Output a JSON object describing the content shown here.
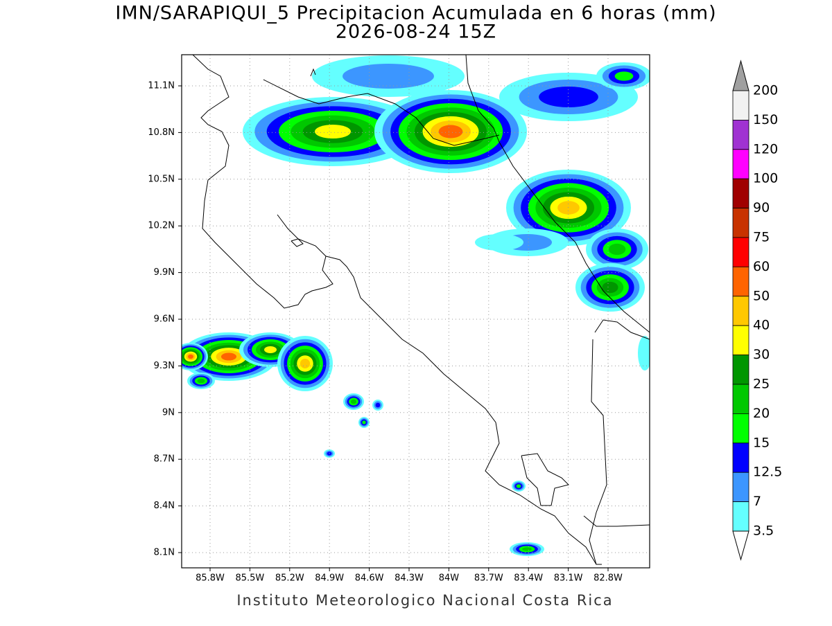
{
  "title": "IMN/SARAPIQUI_5 Precipitacion Acumulada en 6 horas (mm)",
  "subtitle": "2026-08-24 15Z",
  "map": {
    "lon_ticks": [
      "85.8W",
      "85.5W",
      "85.2W",
      "84.9W",
      "84.6W",
      "84.3W",
      "84W",
      "83.7W",
      "83.4W",
      "83.1W",
      "82.8W"
    ],
    "lat_ticks": [
      "11.1N",
      "10.8N",
      "10.5N",
      "10.2N",
      "9.9N",
      "9.6N",
      "9.3N",
      "9N",
      "8.7N",
      "8.4N",
      "8.1N"
    ]
  },
  "colorbar": {
    "labels": [
      "200",
      "150",
      "120",
      "100",
      "90",
      "75",
      "60",
      "50",
      "40",
      "30",
      "25",
      "20",
      "15",
      "12.5",
      "7",
      "3.5"
    ],
    "colors": [
      "#f2f2f2",
      "#a032d2",
      "#ff00ff",
      "#a00000",
      "#c83200",
      "#ff0000",
      "#ff6400",
      "#ffc800",
      "#ffff00",
      "#009600",
      "#00c800",
      "#00ff00",
      "#0000ff",
      "#3c96ff",
      "#64ffff"
    ],
    "over_color": "#a0a0a0",
    "under_color": "#ffffff"
  },
  "footer": "Instituto Meteorologico Nacional Costa Rica"
}
